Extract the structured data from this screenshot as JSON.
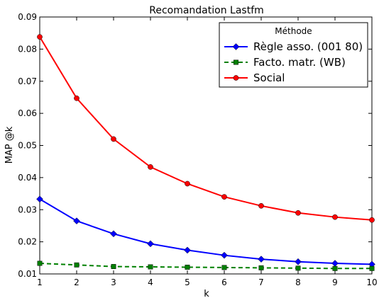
{
  "chart_data": {
    "type": "line",
    "title": "Recomandation Lastfm",
    "xlabel": "k",
    "ylabel": "MAP @k",
    "x": [
      1,
      2,
      3,
      4,
      5,
      6,
      7,
      8,
      9,
      10
    ],
    "xlim": [
      1,
      10
    ],
    "ylim": [
      0.01,
      0.09
    ],
    "xticks": [
      "1",
      "2",
      "3",
      "4",
      "5",
      "6",
      "7",
      "8",
      "9",
      "10"
    ],
    "yticks": [
      "0.01",
      "0.02",
      "0.03",
      "0.04",
      "0.05",
      "0.06",
      "0.07",
      "0.08",
      "0.09"
    ],
    "ytick_values": [
      0.01,
      0.02,
      0.03,
      0.04,
      0.05,
      0.06,
      0.07,
      0.08,
      0.09
    ],
    "grid": false,
    "legend": {
      "title": "Méthode",
      "placement": "top-right"
    },
    "series": [
      {
        "name": "Règle asso. (001 80)",
        "color": "#0000ff",
        "linestyle": "solid",
        "marker": "diamond",
        "values": [
          0.0333,
          0.0265,
          0.0225,
          0.0194,
          0.0174,
          0.0158,
          0.0146,
          0.0138,
          0.0133,
          0.013
        ]
      },
      {
        "name": "Facto. matr. (WB)",
        "color": "#008000",
        "linestyle": "dashed",
        "marker": "square",
        "values": [
          0.0133,
          0.0128,
          0.0123,
          0.0122,
          0.0121,
          0.012,
          0.0119,
          0.0118,
          0.0117,
          0.0117
        ]
      },
      {
        "name": "Social",
        "color": "#ff0000",
        "linestyle": "solid",
        "marker": "circle",
        "values": [
          0.0838,
          0.0647,
          0.052,
          0.0433,
          0.0381,
          0.034,
          0.0312,
          0.029,
          0.0277,
          0.0268
        ]
      }
    ]
  }
}
